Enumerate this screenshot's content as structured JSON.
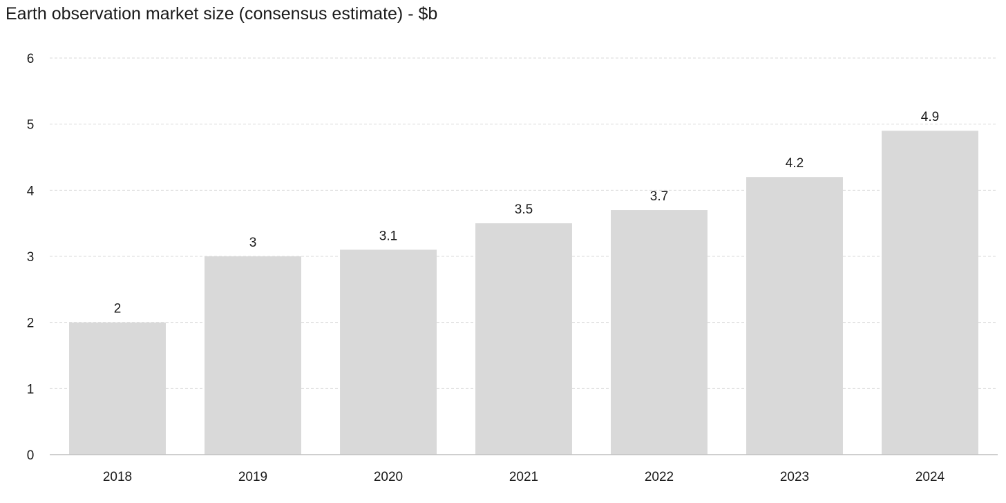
{
  "chart_data": {
    "type": "bar",
    "title": "Earth observation market size (consensus estimate) - $b",
    "xlabel": "",
    "ylabel": "",
    "categories": [
      "2018",
      "2019",
      "2020",
      "2021",
      "2022",
      "2023",
      "2024"
    ],
    "values": [
      2,
      3,
      3.1,
      3.5,
      3.7,
      4.2,
      4.9
    ],
    "data_labels": [
      "2",
      "3",
      "3.1",
      "3.5",
      "3.7",
      "4.2",
      "4.9"
    ],
    "ylim": [
      0,
      6
    ],
    "yticks": [
      "0",
      "1",
      "2",
      "3",
      "4",
      "5",
      "6"
    ],
    "grid": true,
    "legend": "none",
    "colors": {
      "bar": "#d9d9d9",
      "grid": "#d9d9d9",
      "axis": "#bfbfbf",
      "text": "#1a1a1a"
    }
  }
}
